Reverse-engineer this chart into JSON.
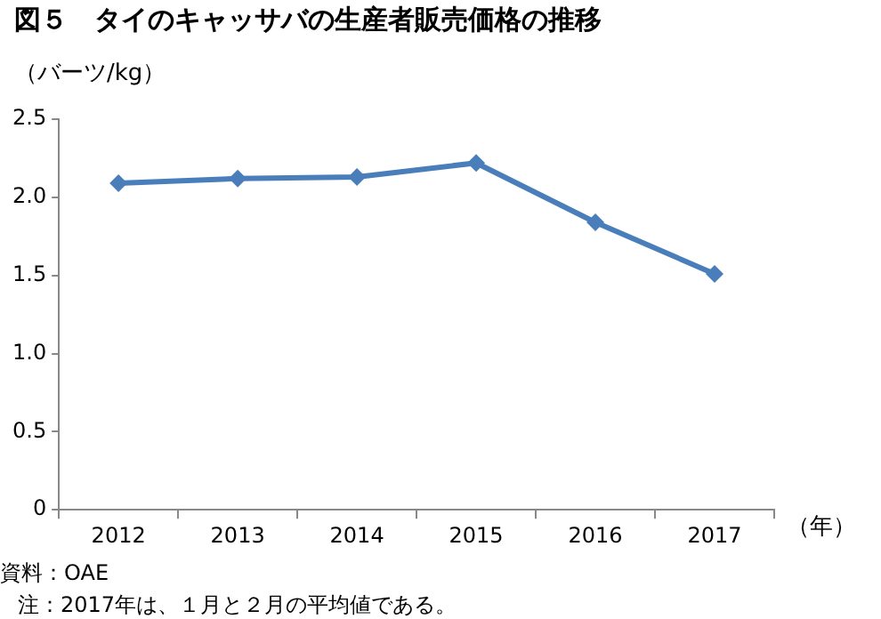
{
  "chart_data": {
    "type": "line",
    "title": "図５　タイのキャッサバの生産者販売価格の推移",
    "ylabel": "（バーツ/kg）",
    "xlabel": "（年）",
    "categories": [
      "2012",
      "2013",
      "2014",
      "2015",
      "2016",
      "2017"
    ],
    "series": [
      {
        "color": "#4a7ebb",
        "values": [
          2.09,
          2.12,
          2.13,
          2.22,
          1.84,
          1.51
        ]
      }
    ],
    "ylim": [
      0,
      2.5
    ],
    "yticks": [
      {
        "value": 0,
        "label": "0"
      },
      {
        "value": 0.5,
        "label": "0.5"
      },
      {
        "value": 1,
        "label": "1.0"
      },
      {
        "value": 1.5,
        "label": "1.5"
      },
      {
        "value": 2,
        "label": "2.0"
      },
      {
        "value": 2.5,
        "label": "2.5"
      }
    ],
    "grid": false,
    "legend": false,
    "marker": "diamond",
    "line_style": "solid",
    "annotations": [
      "資料：OAE",
      "注：2017年は、１月と２月の平均値である。"
    ]
  }
}
